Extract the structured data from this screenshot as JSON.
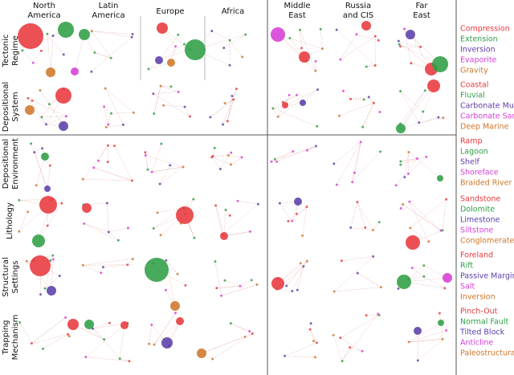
{
  "chart_data": {
    "type": "network-grid",
    "columns": [
      [
        "North",
        "America"
      ],
      [
        "Latin",
        "America"
      ],
      [
        "Europe"
      ],
      [
        "Africa"
      ],
      [
        "Middle",
        "East"
      ],
      [
        "Russia",
        "and CIS"
      ],
      [
        "Far",
        "East"
      ]
    ],
    "rows": [
      {
        "label": [
          "Tectonic",
          "Regime"
        ],
        "legend": [
          {
            "name": "Compression",
            "color": "#e8383d"
          },
          {
            "name": "Extension",
            "color": "#2f9e44"
          },
          {
            "name": "Inversion",
            "color": "#5b3fa8"
          },
          {
            "name": "Evaporite",
            "color": "#d63fd6"
          },
          {
            "name": "Gravity",
            "color": "#d0762a"
          }
        ]
      },
      {
        "label": [
          "Depositional",
          "System"
        ],
        "legend": [
          {
            "name": "Coastal",
            "color": "#e8383d"
          },
          {
            "name": "Fluvial",
            "color": "#2f9e44"
          },
          {
            "name": "Carbonate Mud",
            "color": "#5b3fa8"
          },
          {
            "name": "Carbonate Sand",
            "color": "#d63fd6"
          },
          {
            "name": "Deep Marine",
            "color": "#d0762a"
          }
        ]
      },
      {
        "label": [
          "Depositional",
          "Environment"
        ],
        "legend": [
          {
            "name": "Ramp",
            "color": "#e8383d"
          },
          {
            "name": "Lagoon",
            "color": "#2f9e44"
          },
          {
            "name": "Shelf",
            "color": "#5b3fa8"
          },
          {
            "name": "Shoreface",
            "color": "#d63fd6"
          },
          {
            "name": "Braided River",
            "color": "#d0762a"
          }
        ]
      },
      {
        "label": [
          "Lithology"
        ],
        "legend": [
          {
            "name": "Sandstone",
            "color": "#e8383d"
          },
          {
            "name": "Dolomite",
            "color": "#2f9e44"
          },
          {
            "name": "Limestone",
            "color": "#5b3fa8"
          },
          {
            "name": "Siltstone",
            "color": "#d63fd6"
          },
          {
            "name": "Conglomerate",
            "color": "#d0762a"
          }
        ]
      },
      {
        "label": [
          "Structural",
          "Settings"
        ],
        "legend": [
          {
            "name": "Foreland",
            "color": "#e8383d"
          },
          {
            "name": "Rift",
            "color": "#2f9e44"
          },
          {
            "name": "Passive Margin",
            "color": "#5b3fa8"
          },
          {
            "name": "Salt",
            "color": "#d63fd6"
          },
          {
            "name": "Inversion",
            "color": "#d0762a"
          }
        ]
      },
      {
        "label": [
          "Trapping",
          "Mechanism"
        ],
        "legend": [
          {
            "name": "Pinch-Out",
            "color": "#e8383d"
          },
          {
            "name": "Normal Fault",
            "color": "#2f9e44"
          },
          {
            "name": "Tilted Block",
            "color": "#5b3fa8"
          },
          {
            "name": "Anticline",
            "color": "#d63fd6"
          },
          {
            "name": "Paleostructural",
            "color": "#d0762a"
          }
        ]
      }
    ],
    "nodes": [
      {
        "row": 0,
        "col": 0,
        "category": 0,
        "value": 16
      },
      {
        "row": 0,
        "col": 0,
        "category": 1,
        "value": 10
      },
      {
        "row": 0,
        "col": 1,
        "category": 1,
        "value": 7
      },
      {
        "row": 0,
        "col": 0,
        "category": 4,
        "value": 6
      },
      {
        "row": 0,
        "col": 1,
        "category": 3,
        "value": 5
      },
      {
        "row": 0,
        "col": 2,
        "category": 0,
        "value": 7
      },
      {
        "row": 0,
        "col": 2,
        "category": 2,
        "value": 5
      },
      {
        "row": 0,
        "col": 2,
        "category": 4,
        "value": 5
      },
      {
        "row": 0,
        "col": 3,
        "category": 1,
        "value": 13
      },
      {
        "row": 0,
        "col": 4,
        "category": 3,
        "value": 9
      },
      {
        "row": 0,
        "col": 4,
        "category": 0,
        "value": 7
      },
      {
        "row": 0,
        "col": 5,
        "category": 0,
        "value": 6
      },
      {
        "row": 0,
        "col": 6,
        "category": 2,
        "value": 6
      },
      {
        "row": 0,
        "col": 6,
        "category": 0,
        "value": 8
      },
      {
        "row": 0,
        "col": 6,
        "category": 1,
        "value": 10
      },
      {
        "row": 1,
        "col": 0,
        "category": 0,
        "value": 10
      },
      {
        "row": 1,
        "col": 0,
        "category": 4,
        "value": 6
      },
      {
        "row": 1,
        "col": 0,
        "category": 2,
        "value": 6
      },
      {
        "row": 1,
        "col": 4,
        "category": 2,
        "value": 4
      },
      {
        "row": 1,
        "col": 4,
        "category": 0,
        "value": 4
      },
      {
        "row": 1,
        "col": 6,
        "category": 0,
        "value": 8
      },
      {
        "row": 1,
        "col": 6,
        "category": 1,
        "value": 6
      },
      {
        "row": 2,
        "col": 0,
        "category": 1,
        "value": 5
      },
      {
        "row": 2,
        "col": 0,
        "category": 2,
        "value": 4
      },
      {
        "row": 2,
        "col": 6,
        "category": 1,
        "value": 4
      },
      {
        "row": 3,
        "col": 0,
        "category": 0,
        "value": 11
      },
      {
        "row": 3,
        "col": 0,
        "category": 1,
        "value": 8
      },
      {
        "row": 3,
        "col": 1,
        "category": 0,
        "value": 6
      },
      {
        "row": 3,
        "col": 2,
        "category": 0,
        "value": 11
      },
      {
        "row": 3,
        "col": 3,
        "category": 0,
        "value": 5
      },
      {
        "row": 3,
        "col": 6,
        "category": 0,
        "value": 9
      },
      {
        "row": 3,
        "col": 4,
        "category": 2,
        "value": 5
      },
      {
        "row": 4,
        "col": 0,
        "category": 0,
        "value": 13
      },
      {
        "row": 4,
        "col": 0,
        "category": 2,
        "value": 6
      },
      {
        "row": 4,
        "col": 2,
        "category": 1,
        "value": 15
      },
      {
        "row": 4,
        "col": 2,
        "category": 4,
        "value": 6
      },
      {
        "row": 4,
        "col": 4,
        "category": 0,
        "value": 8
      },
      {
        "row": 4,
        "col": 6,
        "category": 1,
        "value": 9
      },
      {
        "row": 4,
        "col": 6,
        "category": 3,
        "value": 6
      },
      {
        "row": 5,
        "col": 1,
        "category": 0,
        "value": 7
      },
      {
        "row": 5,
        "col": 1,
        "category": 1,
        "value": 6
      },
      {
        "row": 5,
        "col": 1,
        "category": 0,
        "value": 5
      },
      {
        "row": 5,
        "col": 2,
        "category": 2,
        "value": 7
      },
      {
        "row": 5,
        "col": 3,
        "category": 4,
        "value": 6
      },
      {
        "row": 5,
        "col": 2,
        "category": 0,
        "value": 5
      },
      {
        "row": 5,
        "col": 6,
        "category": 2,
        "value": 5
      },
      {
        "row": 5,
        "col": 6,
        "category": 1,
        "value": 4
      }
    ]
  }
}
